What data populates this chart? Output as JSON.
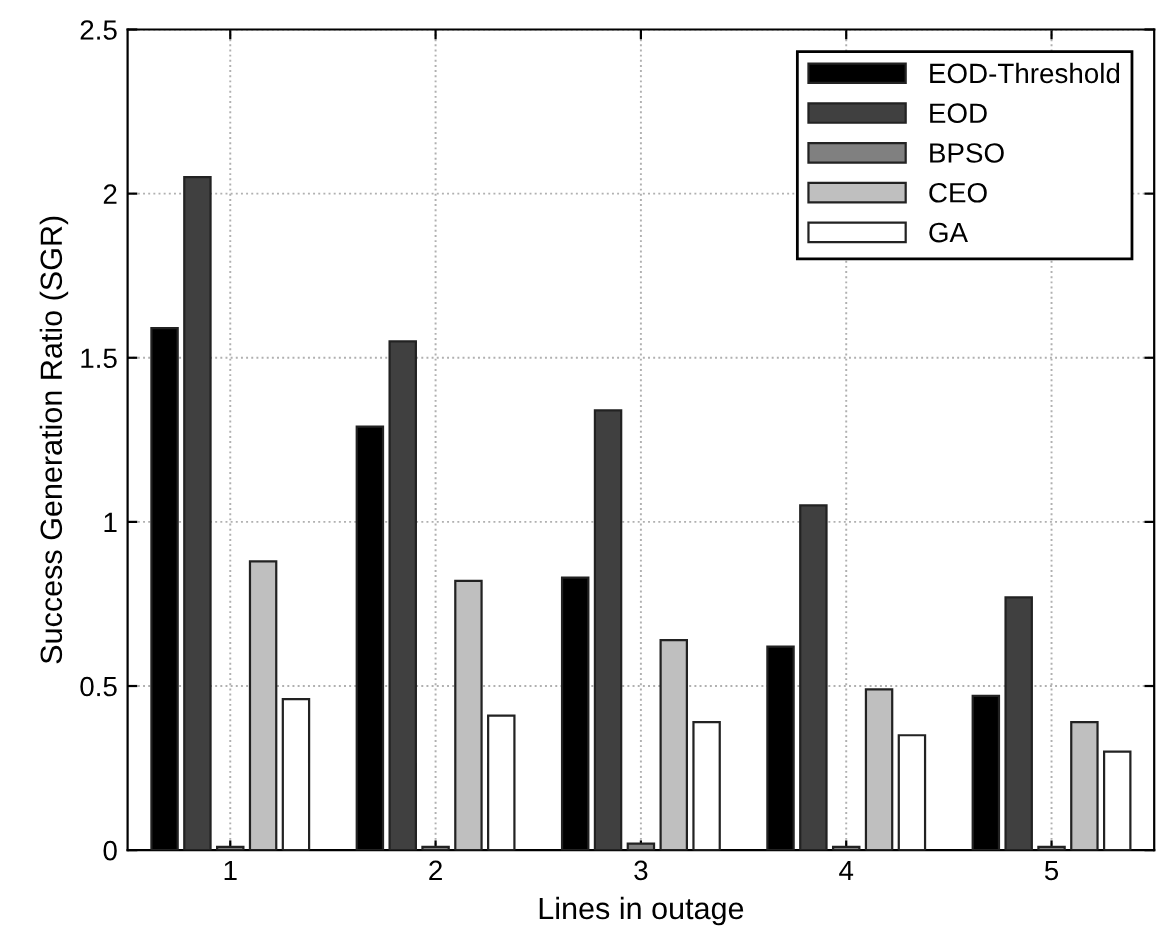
{
  "chart_data": {
    "type": "bar",
    "xlabel": "Lines in outage",
    "ylabel": "Success Generation Ratio (SGR)",
    "categories": [
      "1",
      "2",
      "3",
      "4",
      "5"
    ],
    "series": [
      {
        "name": "EOD-Threshold",
        "color": "#000000",
        "values": [
          1.59,
          1.29,
          0.83,
          0.62,
          0.47
        ]
      },
      {
        "name": "EOD",
        "color": "#404040",
        "values": [
          2.05,
          1.55,
          1.34,
          1.05,
          0.77
        ]
      },
      {
        "name": "BPSO",
        "color": "#808080",
        "values": [
          0.01,
          0.01,
          0.02,
          0.01,
          0.01
        ]
      },
      {
        "name": "CEO",
        "color": "#bfbfbf",
        "values": [
          0.88,
          0.82,
          0.64,
          0.49,
          0.39
        ]
      },
      {
        "name": "GA",
        "color": "#ffffff",
        "values": [
          0.46,
          0.41,
          0.39,
          0.35,
          0.3
        ]
      }
    ],
    "ylim": [
      0,
      2.5
    ],
    "yticks": [
      0,
      0.5,
      1,
      1.5,
      2,
      {
        "value": 2.5,
        "label": "2.5"
      }
    ],
    "grid": true,
    "legend": "top right"
  }
}
